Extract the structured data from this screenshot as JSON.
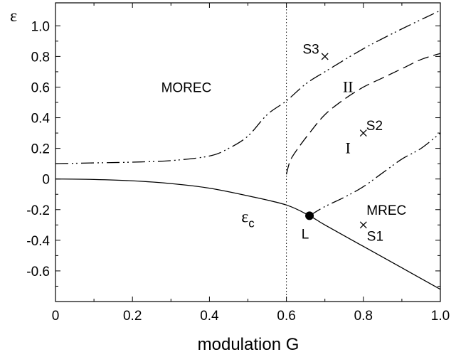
{
  "chart_data": {
    "type": "line",
    "xlabel": "modulation G",
    "ylabel": "ε",
    "xlim": [
      0,
      1.0
    ],
    "ylim": [
      -0.8,
      1.15
    ],
    "x_ticks": [
      "0",
      "0.2",
      "0.4",
      "0.6",
      "0.8",
      "1.0"
    ],
    "y_ticks": [
      "-0.6",
      "-0.4",
      "-0.2",
      "0",
      "0.2",
      "0.4",
      "0.6",
      "0.8",
      "1.0"
    ],
    "x_tick_values": [
      0,
      0.2,
      0.4,
      0.6,
      0.8,
      1.0
    ],
    "y_tick_values": [
      -0.6,
      -0.4,
      -0.2,
      0,
      0.2,
      0.4,
      0.6,
      0.8,
      1.0
    ],
    "grid": false,
    "vertical_reference_x": 0.6,
    "series": [
      {
        "label": "ε",
        "sublabel": "c",
        "style": "solid",
        "x": [
          0,
          0.1,
          0.2,
          0.3,
          0.4,
          0.5,
          0.6,
          0.66,
          0.7,
          0.8,
          0.9,
          1.0
        ],
        "y": [
          0,
          -0.003,
          -0.012,
          -0.03,
          -0.06,
          -0.11,
          -0.17,
          -0.24,
          -0.3,
          -0.44,
          -0.58,
          -0.72
        ]
      },
      {
        "style": "dash-dot-dot",
        "x": [
          0,
          0.1,
          0.2,
          0.3,
          0.4,
          0.45,
          0.5,
          0.55,
          0.6,
          0.65,
          0.7,
          0.8,
          0.9,
          1.0
        ],
        "y": [
          0.1,
          0.105,
          0.11,
          0.12,
          0.15,
          0.2,
          0.28,
          0.42,
          0.51,
          0.62,
          0.7,
          0.85,
          0.98,
          1.1
        ]
      },
      {
        "style": "dashed",
        "x": [
          0.6,
          0.61,
          0.63,
          0.66,
          0.7,
          0.75,
          0.8,
          0.85,
          0.9,
          0.95,
          1.0
        ],
        "y": [
          0.03,
          0.12,
          0.2,
          0.3,
          0.42,
          0.52,
          0.6,
          0.66,
          0.72,
          0.78,
          0.82
        ]
      },
      {
        "style": "dash-dot-dot",
        "x": [
          0.66,
          0.7,
          0.75,
          0.8,
          0.85,
          0.9,
          0.95,
          1.0
        ],
        "y": [
          -0.24,
          -0.18,
          -0.12,
          -0.05,
          0.04,
          0.13,
          0.2,
          0.3
        ]
      }
    ],
    "points": [
      {
        "label": "S1",
        "x": 0.8,
        "y": -0.3,
        "marker": "cross"
      },
      {
        "label": "S2",
        "x": 0.8,
        "y": 0.3,
        "marker": "cross"
      },
      {
        "label": "S3",
        "x": 0.7,
        "y": 0.8,
        "marker": "cross"
      },
      {
        "label": "L",
        "x": 0.66,
        "y": -0.24,
        "marker": "filled-circle"
      }
    ],
    "annotations": [
      {
        "text": "MOREC",
        "x": 0.34,
        "y": 0.6,
        "style": "sans"
      },
      {
        "text": "MREC",
        "x": 0.86,
        "y": -0.2,
        "style": "sans"
      },
      {
        "text": "II",
        "x": 0.76,
        "y": 0.6,
        "style": "serif"
      },
      {
        "text": "I",
        "x": 0.76,
        "y": 0.2,
        "style": "serif"
      },
      {
        "text": "ε",
        "sub": "c",
        "x": 0.5,
        "y": -0.25,
        "style": "greek"
      }
    ]
  }
}
